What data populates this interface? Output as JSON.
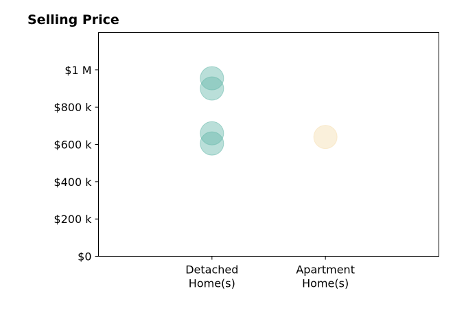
{
  "chart_data": {
    "type": "scatter",
    "title": "Selling Price",
    "xlabel": "",
    "ylabel": "",
    "categories": [
      "Detached\nHome(s)",
      "Apartment\nHome(s)"
    ],
    "ylim": [
      0,
      1200000
    ],
    "yticks": [
      0,
      200000,
      400000,
      600000,
      800000,
      1000000
    ],
    "ytick_labels": [
      "$0",
      "$200 k",
      "$400 k",
      "$600 k",
      "$800 k",
      "$1 M"
    ],
    "grid": false,
    "series": [
      {
        "category": "Detached\nHome(s)",
        "color": "#66b8aa",
        "values": [
          955000,
          900000,
          660000,
          605000
        ]
      },
      {
        "category": "Apartment\nHome(s)",
        "color": "#f5deb0",
        "values": [
          640000
        ]
      }
    ]
  }
}
